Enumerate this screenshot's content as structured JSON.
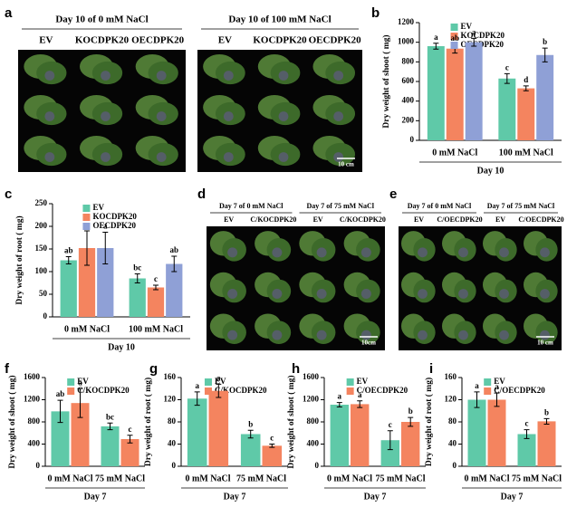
{
  "chart_data": [
    {
      "type": "bar",
      "panel": "b",
      "ylabel": "Dry weight of shoot ( mg)",
      "xlabel": "Day 10",
      "categories": [
        "0 mM NaCl",
        "100 mM NaCl"
      ],
      "ylim": [
        0,
        1200
      ],
      "yticks": [
        0,
        200,
        400,
        600,
        800,
        1000,
        1200
      ],
      "series": [
        {
          "name": "EV",
          "color": "#5fc9a8",
          "values": [
            960,
            630
          ],
          "errors": [
            30,
            50
          ],
          "letters": [
            "a",
            "c"
          ]
        },
        {
          "name": "KOCDPK20",
          "color": "#f4845f",
          "values": [
            935,
            530
          ],
          "errors": [
            45,
            25
          ],
          "letters": [
            "ab",
            "d"
          ]
        },
        {
          "name": "OECDPK20",
          "color": "#8fa0d6",
          "values": [
            1000,
            870
          ],
          "errors": [
            40,
            70
          ],
          "letters": [
            "a",
            "b"
          ]
        }
      ]
    },
    {
      "type": "bar",
      "panel": "c",
      "ylabel": "Dry weight of root ( mg)",
      "xlabel": "Day 10",
      "categories": [
        "0 mM NaCl",
        "100 mM NaCl"
      ],
      "ylim": [
        0,
        250
      ],
      "yticks": [
        0,
        50,
        100,
        150,
        200,
        250
      ],
      "series": [
        {
          "name": "EV",
          "color": "#5fc9a8",
          "values": [
            125,
            85
          ],
          "errors": [
            8,
            10
          ],
          "letters": [
            "ab",
            "bc"
          ]
        },
        {
          "name": "KOCDPK20",
          "color": "#f4845f",
          "values": [
            152,
            65
          ],
          "errors": [
            38,
            5
          ],
          "letters": [
            "a",
            "c"
          ]
        },
        {
          "name": "OECDPK20",
          "color": "#8fa0d6",
          "values": [
            152,
            117
          ],
          "errors": [
            35,
            17
          ],
          "letters": [
            "a",
            "ab"
          ]
        }
      ]
    },
    {
      "type": "bar",
      "panel": "f",
      "ylabel": "Dry weight of shoot ( mg)",
      "xlabel": "Day 7",
      "categories": [
        "0 mM NaCl",
        "75 mM NaCl"
      ],
      "ylim": [
        0,
        1600
      ],
      "yticks": [
        0,
        400,
        800,
        1200,
        1600
      ],
      "series": [
        {
          "name": "EV",
          "color": "#5fc9a8",
          "values": [
            990,
            720
          ],
          "errors": [
            200,
            60
          ],
          "letters": [
            "ab",
            "bc"
          ]
        },
        {
          "name": "C/KOCDPK20",
          "color": "#f4845f",
          "values": [
            1140,
            490
          ],
          "errors": [
            260,
            70
          ],
          "letters": [
            "a",
            "c"
          ]
        }
      ]
    },
    {
      "type": "bar",
      "panel": "g",
      "ylabel": "Dry weight of root ( mg)",
      "xlabel": "Day 7",
      "categories": [
        "0 mM NaCl",
        "75 mM NaCl"
      ],
      "ylim": [
        0,
        160
      ],
      "yticks": [
        0,
        40,
        80,
        120,
        160
      ],
      "series": [
        {
          "name": "EV",
          "color": "#5fc9a8",
          "values": [
            122,
            58
          ],
          "errors": [
            12,
            7
          ],
          "letters": [
            "a",
            "b"
          ]
        },
        {
          "name": "C/KOCDPK20",
          "color": "#f4845f",
          "values": [
            136,
            37
          ],
          "errors": [
            12,
            3
          ],
          "letters": [
            "a",
            "c"
          ]
        }
      ]
    },
    {
      "type": "bar",
      "panel": "h",
      "ylabel": "Dry weight of shoot ( mg)",
      "xlabel": "Day 7",
      "categories": [
        "0 mM NaCl",
        "75 mM NaCl"
      ],
      "ylim": [
        0,
        1600
      ],
      "yticks": [
        0,
        400,
        800,
        1200,
        1600
      ],
      "series": [
        {
          "name": "EV",
          "color": "#5fc9a8",
          "values": [
            1110,
            470
          ],
          "errors": [
            40,
            170
          ],
          "letters": [
            "a",
            "c"
          ]
        },
        {
          "name": "C/OECDPK20",
          "color": "#f4845f",
          "values": [
            1120,
            800
          ],
          "errors": [
            60,
            80
          ],
          "letters": [
            "a",
            "b"
          ]
        }
      ]
    },
    {
      "type": "bar",
      "panel": "i",
      "ylabel": "Dry weight of root ( mg)",
      "xlabel": "Day 7",
      "categories": [
        "0 mM NaCl",
        "75 mM NaCl"
      ],
      "ylim": [
        0,
        160
      ],
      "yticks": [
        0,
        40,
        80,
        120,
        160
      ],
      "series": [
        {
          "name": "EV",
          "color": "#5fc9a8",
          "values": [
            120,
            58
          ],
          "errors": [
            14,
            8
          ],
          "letters": [
            "a",
            "c"
          ]
        },
        {
          "name": "C/OECDPK20",
          "color": "#f4845f",
          "values": [
            120,
            81
          ],
          "errors": [
            12,
            5
          ],
          "letters": [
            "a",
            "b"
          ]
        }
      ]
    }
  ],
  "photos": [
    {
      "panel": "a",
      "scale": "10 cm",
      "groups": [
        {
          "title": "Day 10 of  0 mM NaCl",
          "labels": [
            "EV",
            "KOCDPK20",
            "OECDPK20"
          ]
        },
        {
          "title": "Day 10 of 100 mM NaCl",
          "labels": [
            "EV",
            "KOCDPK20",
            "OECDPK20"
          ]
        }
      ]
    },
    {
      "panel": "d",
      "scale": "10cm",
      "groups": [
        {
          "title": "Day 7 of 0 mM NaCl",
          "labels": [
            "EV",
            "C/KOCDPK20"
          ]
        },
        {
          "title": "Day 7 of 75 mM NaCl",
          "labels": [
            "EV",
            "C/KOCDPK20"
          ]
        }
      ]
    },
    {
      "panel": "e",
      "scale": "10 cm",
      "groups": [
        {
          "title": "Day 7 of 0 mM NaCl",
          "labels": [
            "EV",
            "C/OECDPK20"
          ]
        },
        {
          "title": "Day 7 of 75 mM NaCl",
          "labels": [
            "EV",
            "C/OECDPK20"
          ]
        }
      ]
    }
  ]
}
